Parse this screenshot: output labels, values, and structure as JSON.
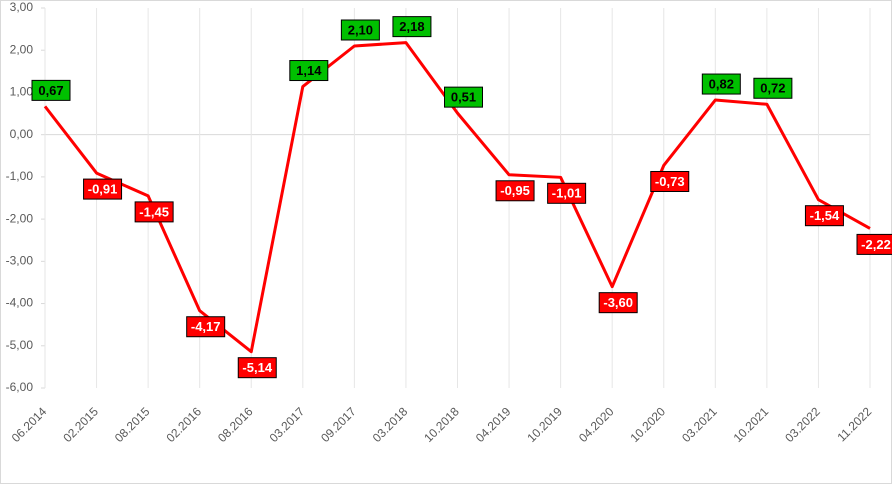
{
  "chart_data": {
    "type": "line",
    "categories": [
      "06.2014",
      "02.2015",
      "08.2015",
      "02.2016",
      "08.2016",
      "03.2017",
      "09.2017",
      "03.2018",
      "10.2018",
      "04.2019",
      "10.2019",
      "04.2020",
      "10.2020",
      "03.2021",
      "10.2021",
      "03.2022",
      "11.2022"
    ],
    "series": [
      {
        "color": "#ff0000",
        "values": [
          0.67,
          -0.91,
          -1.45,
          -4.17,
          -5.14,
          1.14,
          2.1,
          2.18,
          0.51,
          -0.95,
          -1.01,
          -3.6,
          -0.73,
          0.82,
          0.72,
          -1.54,
          -2.22
        ],
        "value_labels": [
          "0,67",
          "-0,91",
          "-1,45",
          "-4,17",
          "-5,14",
          "1,14",
          "2,10",
          "2,18",
          "0,51",
          "-0,95",
          "-1,01",
          "-3,60",
          "-0,73",
          "0,82",
          "0,72",
          "-1,54",
          "-2,22"
        ]
      }
    ],
    "ylim": [
      -6,
      3
    ],
    "yticks": [
      {
        "value": 3,
        "label": "3,00"
      },
      {
        "value": 2,
        "label": "2,00"
      },
      {
        "value": 1,
        "label": "1,00"
      },
      {
        "value": 0,
        "label": "0,00"
      },
      {
        "value": -1,
        "label": "-1,00"
      },
      {
        "value": -2,
        "label": "-2,00"
      },
      {
        "value": -3,
        "label": "-3,00"
      },
      {
        "value": -4,
        "label": "-4,00"
      },
      {
        "value": -5,
        "label": "-5,00"
      },
      {
        "value": -6,
        "label": "-6,00"
      }
    ],
    "positive_label_color": "#00c000",
    "negative_label_color": "#ff0000"
  }
}
